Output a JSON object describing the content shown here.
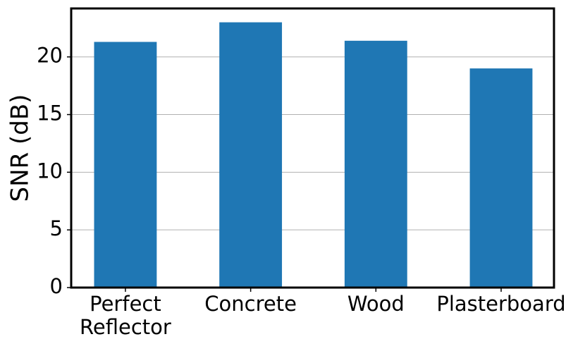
{
  "chart_data": {
    "type": "bar",
    "ylabel": "SNR (dB)",
    "categories": [
      "Perfect\nReflector",
      "Concrete",
      "Wood",
      "Plasterboard"
    ],
    "values": [
      21.3,
      23.0,
      21.4,
      19.0
    ],
    "color": "#1f77b4",
    "ylim": [
      0,
      24.2
    ],
    "yticks": [
      0,
      5,
      10,
      15,
      20
    ],
    "grid": true
  }
}
